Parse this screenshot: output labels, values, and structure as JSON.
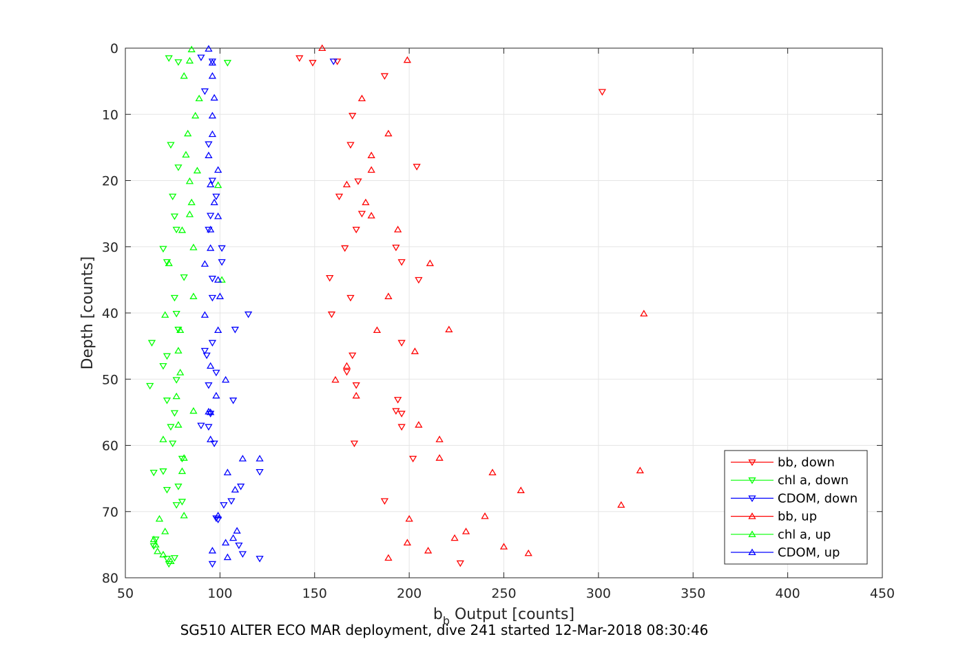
{
  "caption": "SG510 ALTER ECO MAR deployment, dive 241 started 12-Mar-2018 08:30:46",
  "chart_data": {
    "type": "scatter",
    "xlabel": {
      "main": "b",
      "sub": "b",
      "rest": " Output [counts]"
    },
    "ylabel": "Depth [counts]",
    "xlim": [
      50,
      450
    ],
    "ylim": [
      0,
      80
    ],
    "y_reversed": true,
    "grid": true,
    "legend_position": "bottom-right",
    "x_ticks": [
      50,
      100,
      150,
      200,
      250,
      300,
      350,
      400,
      450
    ],
    "y_ticks": [
      0,
      10,
      20,
      30,
      40,
      50,
      60,
      70,
      80
    ],
    "series": [
      {
        "name": "bb, down",
        "color": "#ff0000",
        "marker": "down",
        "points": [
          [
            142,
            1.5
          ],
          [
            149,
            2.2
          ],
          [
            162,
            2
          ],
          [
            187,
            4.2
          ],
          [
            302,
            6.6
          ],
          [
            170,
            10.2
          ],
          [
            169,
            14.6
          ],
          [
            204,
            17.9
          ],
          [
            173,
            20.1
          ],
          [
            163,
            22.4
          ],
          [
            175,
            25
          ],
          [
            172,
            27.4
          ],
          [
            193,
            30.1
          ],
          [
            166,
            30.2
          ],
          [
            196,
            32.3
          ],
          [
            158,
            34.7
          ],
          [
            205,
            35
          ],
          [
            169,
            37.7
          ],
          [
            159,
            40.2
          ],
          [
            196,
            44.5
          ],
          [
            170,
            46.4
          ],
          [
            167,
            48.9
          ],
          [
            172,
            50.9
          ],
          [
            194,
            53.1
          ],
          [
            196,
            55.2
          ],
          [
            193,
            54.8
          ],
          [
            196,
            57.2
          ],
          [
            171,
            59.7
          ],
          [
            202,
            62
          ],
          [
            187,
            68.4
          ],
          [
            227,
            77.8
          ]
        ]
      },
      {
        "name": "chl a, down",
        "color": "#00ff00",
        "marker": "down",
        "points": [
          [
            73,
            1.5
          ],
          [
            78,
            2.1
          ],
          [
            104,
            2.2
          ],
          [
            74,
            14.6
          ],
          [
            78,
            18
          ],
          [
            75,
            22.4
          ],
          [
            76,
            25.4
          ],
          [
            77,
            27.4
          ],
          [
            70,
            30.3
          ],
          [
            72,
            32.3
          ],
          [
            81,
            34.6
          ],
          [
            76,
            37.7
          ],
          [
            77,
            40.1
          ],
          [
            78,
            42.5
          ],
          [
            64,
            44.5
          ],
          [
            72,
            46.5
          ],
          [
            70,
            48
          ],
          [
            77,
            50.1
          ],
          [
            63,
            51
          ],
          [
            72,
            53.2
          ],
          [
            76,
            55.1
          ],
          [
            74,
            57.2
          ],
          [
            75,
            59.7
          ],
          [
            80,
            62
          ],
          [
            65,
            64.1
          ],
          [
            72,
            66.7
          ],
          [
            77,
            69
          ],
          [
            80,
            68.5
          ],
          [
            65,
            75.2
          ],
          [
            72,
            77.1
          ],
          [
            73,
            77.9
          ],
          [
            76,
            77
          ],
          [
            78,
            66.2
          ],
          [
            70,
            63.9
          ],
          [
            66,
            74.2
          ]
        ]
      },
      {
        "name": "CDOM, down",
        "color": "#0000ff",
        "marker": "down",
        "points": [
          [
            90,
            1.4
          ],
          [
            96,
            2
          ],
          [
            160,
            2
          ],
          [
            92,
            6.5
          ],
          [
            94,
            14.5
          ],
          [
            96,
            20
          ],
          [
            98,
            22.4
          ],
          [
            95,
            25.3
          ],
          [
            94,
            27.4
          ],
          [
            101,
            30.2
          ],
          [
            101,
            32.3
          ],
          [
            96,
            34.8
          ],
          [
            96,
            37.7
          ],
          [
            115,
            40.2
          ],
          [
            108,
            42.5
          ],
          [
            96,
            44.5
          ],
          [
            92,
            45.7
          ],
          [
            93,
            46.4
          ],
          [
            98,
            49
          ],
          [
            94,
            50.9
          ],
          [
            107,
            53.2
          ],
          [
            95,
            55.2
          ],
          [
            90,
            57
          ],
          [
            94,
            57.2
          ],
          [
            97,
            59.7
          ],
          [
            121,
            64
          ],
          [
            111,
            66.2
          ],
          [
            106,
            68.4
          ],
          [
            102,
            69
          ],
          [
            99,
            71.2
          ],
          [
            110,
            75.1
          ],
          [
            121,
            77.1
          ],
          [
            96,
            77.9
          ],
          [
            112,
            76.4
          ],
          [
            98,
            71
          ]
        ]
      },
      {
        "name": "bb, up",
        "color": "#ff0000",
        "marker": "up",
        "points": [
          [
            154,
            0
          ],
          [
            199,
            1.8
          ],
          [
            175,
            7.6
          ],
          [
            189,
            12.9
          ],
          [
            180,
            16.2
          ],
          [
            180,
            18.4
          ],
          [
            167,
            20.6
          ],
          [
            177,
            23.3
          ],
          [
            180,
            25.3
          ],
          [
            194,
            27.4
          ],
          [
            211,
            32.5
          ],
          [
            189,
            37.5
          ],
          [
            324,
            40.1
          ],
          [
            183,
            42.6
          ],
          [
            221,
            42.5
          ],
          [
            203,
            45.8
          ],
          [
            167,
            48
          ],
          [
            161,
            50.1
          ],
          [
            172,
            52.5
          ],
          [
            205,
            56.9
          ],
          [
            216,
            59.1
          ],
          [
            216,
            61.9
          ],
          [
            322,
            63.8
          ],
          [
            244,
            64.1
          ],
          [
            259,
            66.8
          ],
          [
            312,
            69
          ],
          [
            200,
            71.1
          ],
          [
            240,
            70.7
          ],
          [
            230,
            73
          ],
          [
            224,
            74
          ],
          [
            199,
            74.7
          ],
          [
            250,
            75.3
          ],
          [
            210,
            75.9
          ],
          [
            263,
            76.3
          ],
          [
            189,
            77
          ]
        ]
      },
      {
        "name": "chl a, up",
        "color": "#00ff00",
        "marker": "up",
        "points": [
          [
            85,
            0.2
          ],
          [
            84,
            1.9
          ],
          [
            81,
            4.2
          ],
          [
            89,
            7.6
          ],
          [
            87,
            10.2
          ],
          [
            83,
            12.9
          ],
          [
            82,
            16.1
          ],
          [
            88,
            18.5
          ],
          [
            84,
            20.1
          ],
          [
            99,
            20.7
          ],
          [
            85,
            23.3
          ],
          [
            84,
            25.1
          ],
          [
            80,
            27.5
          ],
          [
            86,
            30.1
          ],
          [
            73,
            32.5
          ],
          [
            101,
            35
          ],
          [
            86,
            37.5
          ],
          [
            71,
            40.3
          ],
          [
            79,
            42.6
          ],
          [
            78,
            45.7
          ],
          [
            79,
            49
          ],
          [
            77,
            52.6
          ],
          [
            86,
            54.8
          ],
          [
            78,
            56.9
          ],
          [
            70,
            59.1
          ],
          [
            81,
            61.9
          ],
          [
            80,
            63.9
          ],
          [
            81,
            70.6
          ],
          [
            68,
            71.1
          ],
          [
            71,
            73
          ],
          [
            65,
            74.2
          ],
          [
            66,
            75
          ],
          [
            67,
            76
          ],
          [
            70,
            76.5
          ],
          [
            74,
            77.5
          ]
        ]
      },
      {
        "name": "CDOM, up",
        "color": "#0000ff",
        "marker": "up",
        "points": [
          [
            94,
            0.1
          ],
          [
            96,
            2.2
          ],
          [
            96,
            4.2
          ],
          [
            97,
            7.5
          ],
          [
            96,
            10.2
          ],
          [
            96,
            13
          ],
          [
            94,
            16.2
          ],
          [
            99,
            18.4
          ],
          [
            95,
            20.6
          ],
          [
            97,
            23.3
          ],
          [
            99,
            25.4
          ],
          [
            95,
            27.4
          ],
          [
            95,
            30.2
          ],
          [
            92,
            32.6
          ],
          [
            99,
            35
          ],
          [
            100,
            37.5
          ],
          [
            92,
            40.3
          ],
          [
            99,
            42.6
          ],
          [
            95,
            48
          ],
          [
            103,
            50.1
          ],
          [
            98,
            52.5
          ],
          [
            94,
            54.9
          ],
          [
            95,
            55
          ],
          [
            95,
            59.1
          ],
          [
            112,
            62
          ],
          [
            121,
            62
          ],
          [
            104,
            64.1
          ],
          [
            108,
            66.7
          ],
          [
            99,
            70.6
          ],
          [
            109,
            72.9
          ],
          [
            107,
            74
          ],
          [
            103,
            74.7
          ],
          [
            96,
            75.9
          ],
          [
            104,
            76.9
          ]
        ]
      }
    ]
  }
}
